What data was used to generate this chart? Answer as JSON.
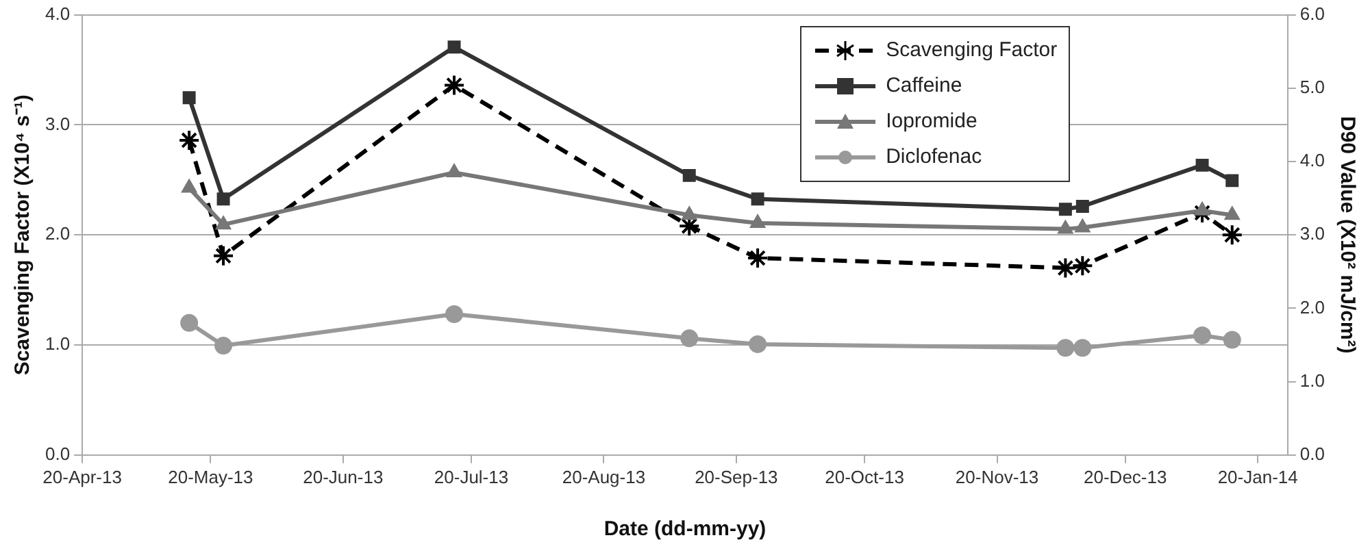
{
  "chart_data": {
    "type": "line",
    "xlabel": "Date (dd-mm-yy)",
    "ylabel": "Scavenging Factor (X10⁴ s⁻¹)",
    "y2label": "D90 Value (X10² mJ/cm²)",
    "x": [
      "2013-05-15",
      "2013-05-23",
      "2013-07-16",
      "2013-09-09",
      "2013-09-25",
      "2013-12-06",
      "2013-12-10",
      "2014-01-07",
      "2014-01-14"
    ],
    "xlim": [
      "2013-04-20",
      "2014-01-27"
    ],
    "xticks": [
      {
        "value": "2013-04-20",
        "label": "20-Apr-13"
      },
      {
        "value": "2013-05-20",
        "label": "20-May-13"
      },
      {
        "value": "2013-06-20",
        "label": "20-Jun-13"
      },
      {
        "value": "2013-07-20",
        "label": "20-Jul-13"
      },
      {
        "value": "2013-08-20",
        "label": "20-Aug-13"
      },
      {
        "value": "2013-09-20",
        "label": "20-Sep-13"
      },
      {
        "value": "2013-10-20",
        "label": "20-Oct-13"
      },
      {
        "value": "2013-11-20",
        "label": "20-Nov-13"
      },
      {
        "value": "2013-12-20",
        "label": "20-Dec-13"
      },
      {
        "value": "2014-01-20",
        "label": "20-Jan-14"
      }
    ],
    "ylim": [
      0,
      4
    ],
    "yticks": [
      {
        "value": 0,
        "label": "0.0"
      },
      {
        "value": 1,
        "label": "1.0"
      },
      {
        "value": 2,
        "label": "2.0"
      },
      {
        "value": 3,
        "label": "3.0"
      },
      {
        "value": 4,
        "label": "4.0"
      }
    ],
    "y2lim": [
      0,
      6
    ],
    "y2ticks": [
      {
        "value": 0,
        "label": "0.0"
      },
      {
        "value": 1,
        "label": "1.0"
      },
      {
        "value": 2,
        "label": "2.0"
      },
      {
        "value": 3,
        "label": "3.0"
      },
      {
        "value": 4,
        "label": "4.0"
      },
      {
        "value": 5,
        "label": "5.0"
      },
      {
        "value": 6,
        "label": "6.0"
      }
    ],
    "grid": "y",
    "legend": "top right",
    "series": [
      {
        "name": "Scavenging Factor",
        "color": "#000000",
        "marker": "cross",
        "line_style": "dashed",
        "values": [
          2.86,
          1.81,
          3.36,
          2.08,
          1.79,
          1.7,
          1.72,
          2.2,
          2.0
        ]
      },
      {
        "name": "Caffeine",
        "color": "#333333",
        "marker": "square",
        "axis": "y2",
        "values": [
          4.87,
          3.49,
          5.56,
          3.81,
          3.49,
          3.35,
          3.39,
          3.95,
          3.74
        ]
      },
      {
        "name": "Iopromide",
        "color": "#777777",
        "marker": "triangle",
        "axis": "y2",
        "values": [
          3.64,
          3.14,
          3.85,
          3.27,
          3.16,
          3.08,
          3.1,
          3.33,
          3.27
        ]
      },
      {
        "name": "Diclofenac",
        "color": "#999999",
        "marker": "circle",
        "axis": "y2",
        "values": [
          1.8,
          1.49,
          1.92,
          1.59,
          1.51,
          1.46,
          1.46,
          1.63,
          1.57
        ]
      }
    ]
  }
}
